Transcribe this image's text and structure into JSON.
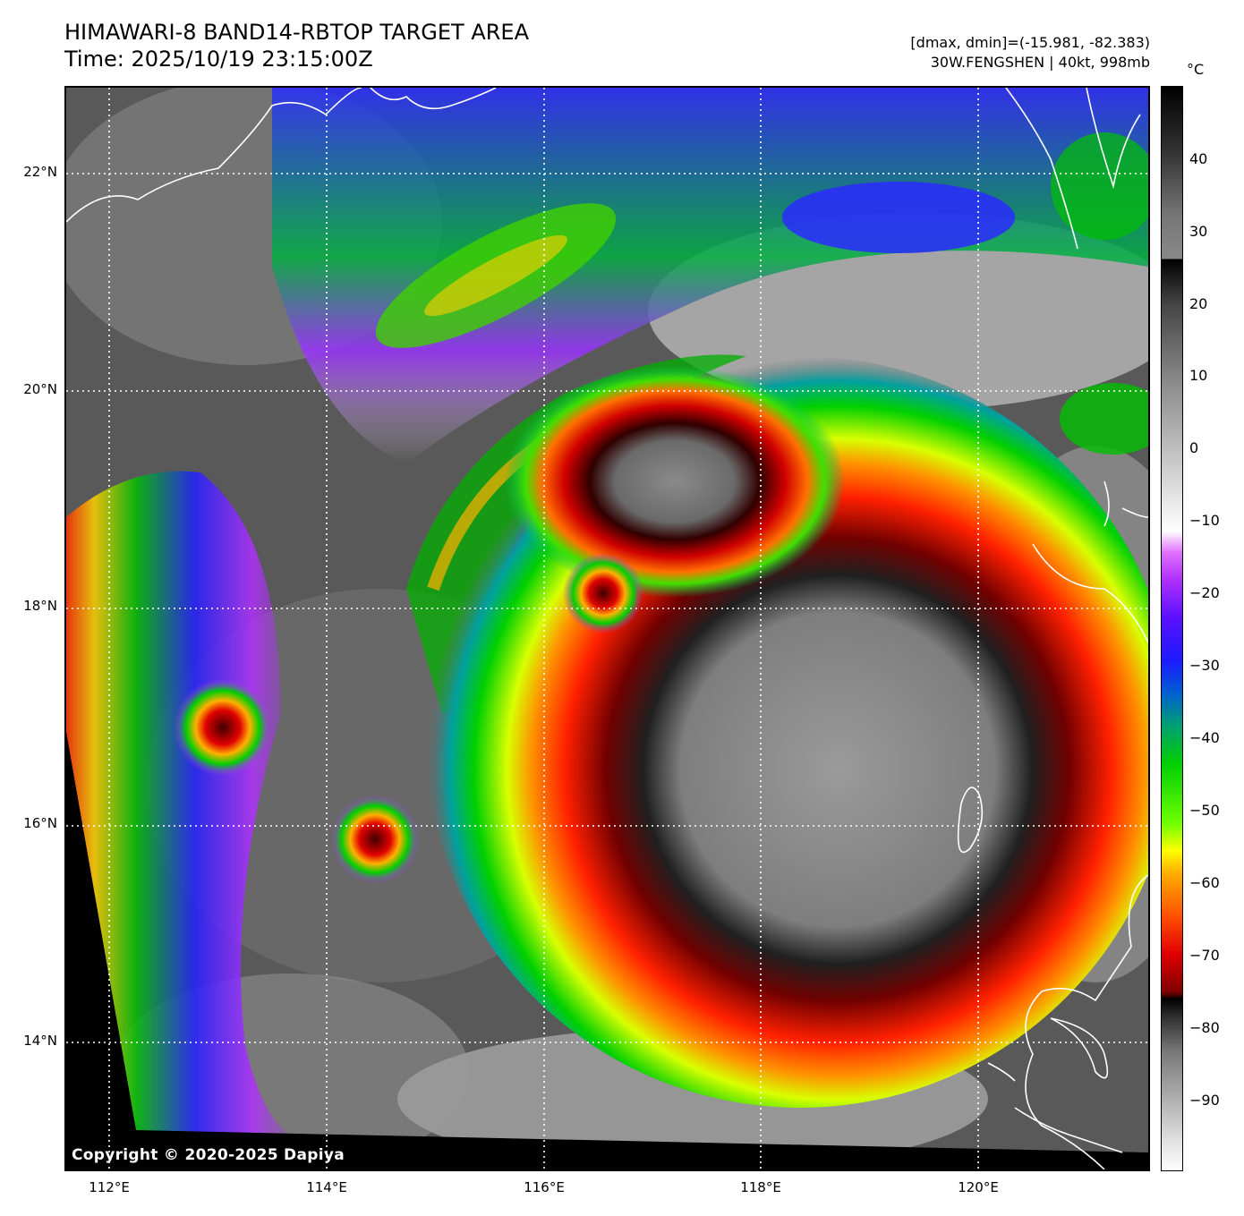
{
  "header": {
    "title_line1": "HIMAWARI-8 BAND14-RBTOP TARGET AREA",
    "title_line2": "Time: 2025/10/19 23:15:00Z",
    "dmax_dmin": "[dmax, dmin]=(-15.981, -82.383)",
    "storm_info": "30W.FENGSHEN | 40kt, 998mb"
  },
  "map": {
    "copyright": "Copyright © 2020-2025 Dapiya",
    "lat_labels": [
      "22°N",
      "20°N",
      "18°N",
      "16°N",
      "14°N"
    ],
    "lon_labels": [
      "112°E",
      "114°E",
      "116°E",
      "118°E",
      "120°E"
    ]
  },
  "colorbar": {
    "unit": "°C",
    "ticks": [
      "40",
      "30",
      "20",
      "10",
      "0",
      "−10",
      "−20",
      "−30",
      "−40",
      "−50",
      "−60",
      "−70",
      "−80",
      "−90"
    ]
  },
  "colors": {
    "coldest_tops": "#800000",
    "cold_ring": "#ff3000",
    "green_band": "#00d000",
    "blue_band": "#1b1bff",
    "purple_band": "#b030ff",
    "coastline": "#ffffff"
  }
}
